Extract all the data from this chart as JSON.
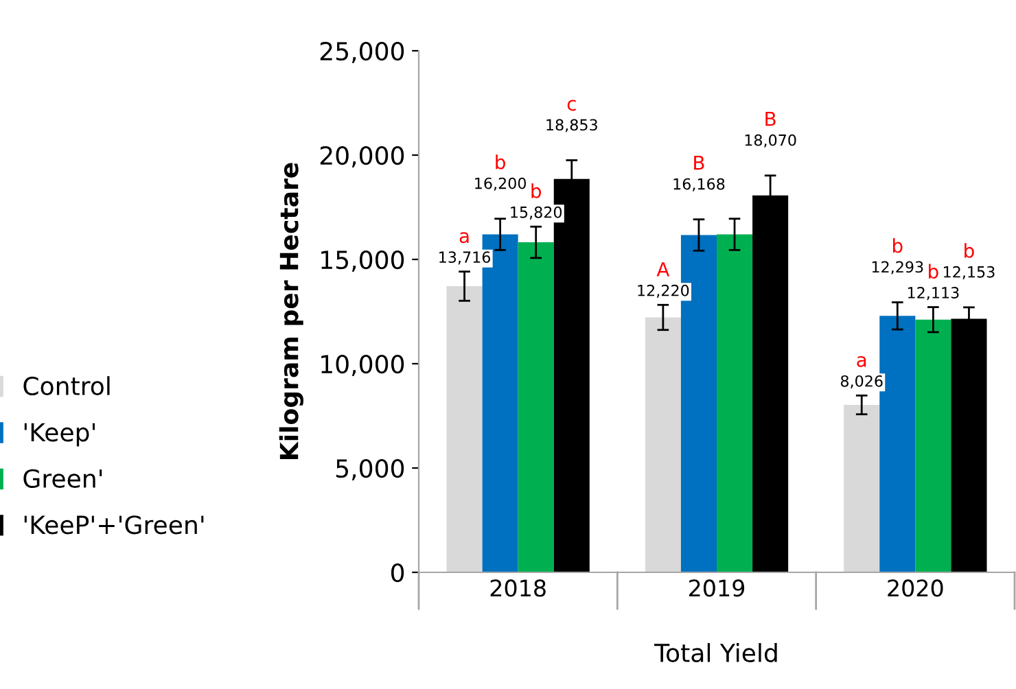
{
  "chart_data": {
    "type": "bar",
    "xlabel": "Total Yield",
    "ylabel": "Kilogram per Hectare",
    "categories": [
      "2018",
      "2019",
      "2020"
    ],
    "series": [
      {
        "name": "Control",
        "color": "#d9d9d9",
        "values": [
          13716,
          12220,
          8026
        ],
        "errors": [
          700,
          600,
          450
        ],
        "value_labels": [
          "13,716",
          "12,220",
          "8,026"
        ]
      },
      {
        "name": "'Keep'",
        "color": "#0070c0",
        "values": [
          16200,
          16168,
          12293
        ],
        "errors": [
          750,
          750,
          650
        ],
        "value_labels": [
          "16,200",
          "16,168",
          "12,293"
        ]
      },
      {
        "name": "Green'",
        "color": "#00b050",
        "values": [
          15820,
          16200,
          12113
        ],
        "errors": [
          750,
          750,
          600
        ],
        "value_labels": [
          "15,820",
          null,
          "12,113"
        ]
      },
      {
        "name": "'KeeP'+'Green'",
        "color": "#000000",
        "values": [
          18853,
          18070,
          12153
        ],
        "errors": [
          900,
          950,
          550
        ],
        "value_labels": [
          "18,853",
          "18,070",
          "12,153"
        ]
      }
    ],
    "ylim": [
      0,
      25000
    ],
    "yticks": [
      {
        "value": 0,
        "label": "0"
      },
      {
        "value": 5000,
        "label": "5,000"
      },
      {
        "value": 10000,
        "label": "10,000"
      },
      {
        "value": 15000,
        "label": "15,000"
      },
      {
        "value": 20000,
        "label": "20,000"
      },
      {
        "value": 25000,
        "label": "25,000"
      }
    ],
    "grid": false,
    "legend": "left",
    "annotations": [
      "a",
      "b",
      "b",
      "c",
      "A",
      "B",
      "B",
      "a",
      "b",
      "b",
      "b"
    ]
  }
}
